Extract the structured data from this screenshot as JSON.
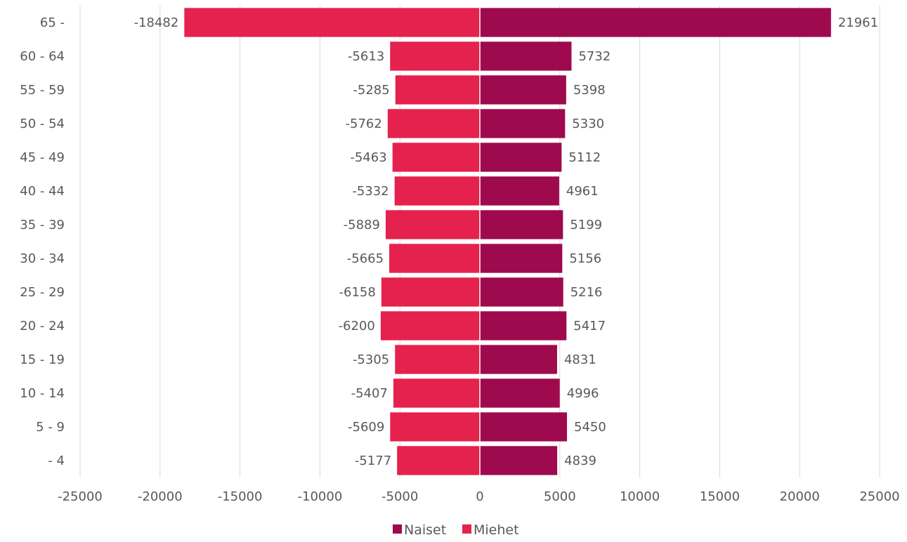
{
  "chart_data": {
    "type": "bar",
    "orientation": "horizontal",
    "categories": [
      "65 -",
      "60 - 64",
      "55 - 59",
      "50 - 54",
      "45 - 49",
      "40 - 44",
      "35 - 39",
      "30 - 34",
      "25 - 29",
      "20 - 24",
      "15 - 19",
      "10 - 14",
      "5 - 9",
      "- 4"
    ],
    "series": [
      {
        "name": "Naiset",
        "color": "#9E0A4D",
        "values": [
          21961,
          5732,
          5398,
          5330,
          5112,
          4961,
          5199,
          5156,
          5216,
          5417,
          4831,
          4996,
          5450,
          4839
        ]
      },
      {
        "name": "Miehet",
        "color": "#E5214D",
        "values": [
          -18482,
          -5613,
          -5285,
          -5762,
          -5463,
          -5332,
          -5889,
          -5665,
          -6158,
          -6200,
          -5305,
          -5407,
          -5609,
          -5177
        ]
      }
    ],
    "xlim": [
      -25000,
      25000
    ],
    "xticks": [
      -25000,
      -20000,
      -15000,
      -10000,
      -5000,
      0,
      5000,
      10000,
      15000,
      20000,
      25000
    ],
    "grid": true,
    "legend_position": "bottom",
    "data_labels": true,
    "title": "",
    "xlabel": "",
    "ylabel": ""
  }
}
